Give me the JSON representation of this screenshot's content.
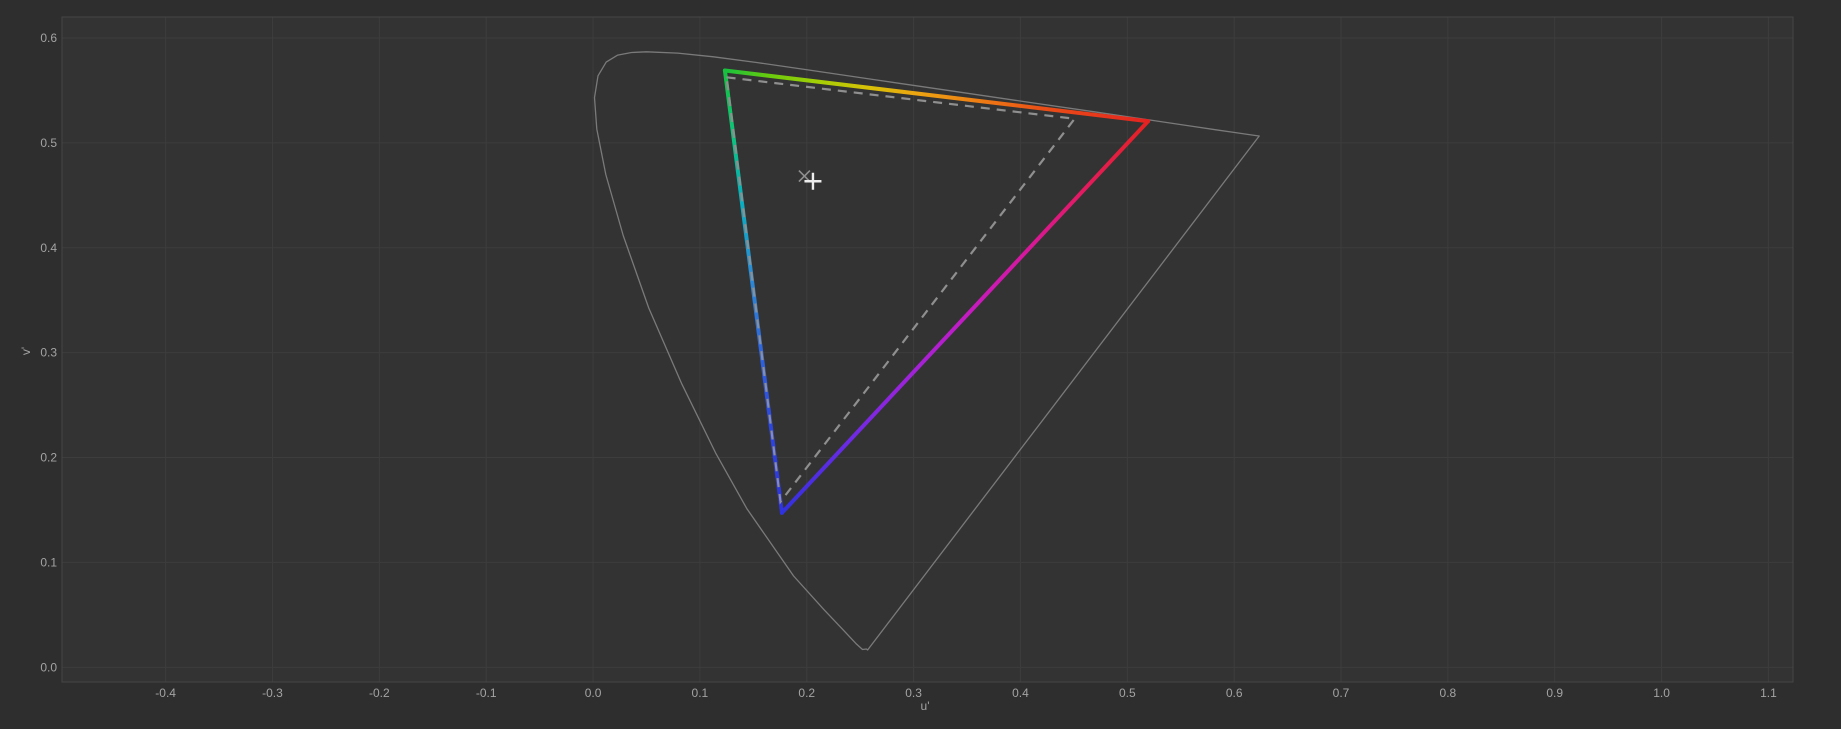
{
  "window": {
    "background": "#2e2e2e",
    "plot_background": "#333333",
    "grid_color": "#3d3d3d",
    "border_color": "#464646",
    "label_color": "#a3a3a3"
  },
  "chart_data": {
    "type": "line",
    "description": "CIE 1976 u'v' chromaticity diagram with spectral locus, wide display gamut triangle (hue-gradient edges), dashed reference gamut triangle and white point markers",
    "xlabel": "u'",
    "ylabel": "v'",
    "xlim": [
      -0.497,
      1.123
    ],
    "ylim": [
      -0.014,
      0.62
    ],
    "grid": true,
    "x_tick_labels": [
      "-0.4",
      "-0.3",
      "-0.2",
      "-0.1",
      "0.0",
      "0.1",
      "0.2",
      "0.3",
      "0.4",
      "0.5",
      "0.6",
      "0.7",
      "0.8",
      "0.9",
      "1.0",
      "1.1"
    ],
    "y_tick_labels": [
      "0.0",
      "0.1",
      "0.2",
      "0.3",
      "0.4",
      "0.5",
      "0.6"
    ],
    "series": [
      {
        "name": "spectral-locus",
        "style": "solid",
        "color": "#7a7a7a",
        "width": 1.3,
        "closed": true,
        "points": [
          [
            0.2569,
            0.0165
          ],
          [
            0.2558,
            0.0175
          ],
          [
            0.2522,
            0.017
          ],
          [
            0.2461,
            0.0226
          ],
          [
            0.2347,
            0.035
          ],
          [
            0.2161,
            0.0549
          ],
          [
            0.1877,
            0.0871
          ],
          [
            0.1441,
            0.151
          ],
          [
            0.1147,
            0.2044
          ],
          [
            0.0828,
            0.2708
          ],
          [
            0.0521,
            0.3427
          ],
          [
            0.0282,
            0.4117
          ],
          [
            0.0119,
            0.4698
          ],
          [
            0.0035,
            0.5131
          ],
          [
            0.0014,
            0.5432
          ],
          [
            0.0046,
            0.5639
          ],
          [
            0.0123,
            0.577
          ],
          [
            0.0231,
            0.5837
          ],
          [
            0.036,
            0.5862
          ],
          [
            0.0501,
            0.5868
          ],
          [
            0.0792,
            0.5856
          ],
          [
            0.1127,
            0.5821
          ],
          [
            0.1531,
            0.5766
          ],
          [
            0.2026,
            0.5694
          ],
          [
            0.2623,
            0.5604
          ],
          [
            0.3315,
            0.5501
          ],
          [
            0.4035,
            0.5393
          ],
          [
            0.4691,
            0.5296
          ],
          [
            0.5203,
            0.5219
          ],
          [
            0.5565,
            0.5165
          ],
          [
            0.583,
            0.5125
          ],
          [
            0.6005,
            0.5099
          ],
          [
            0.6109,
            0.5084
          ],
          [
            0.6199,
            0.507
          ],
          [
            0.6234,
            0.5065
          ]
        ]
      },
      {
        "name": "reference-gamut",
        "style": "dashed",
        "color": "#8f8f8f",
        "width": 2.2,
        "dash": "9 7",
        "points": [
          [
            0.125,
            0.5625
          ],
          [
            0.4507,
            0.5229
          ],
          [
            0.1754,
            0.1579
          ]
        ]
      },
      {
        "name": "display-gamut",
        "style": "gradient-triangle",
        "width": 4,
        "points": [
          [
            0.1234,
            0.569
          ],
          [
            0.5194,
            0.5206
          ],
          [
            0.1768,
            0.1473
          ]
        ],
        "edge_gradients": {
          "top_green_to_red": [
            [
              0,
              "#17c13e"
            ],
            [
              0.1,
              "#65cb0e"
            ],
            [
              0.22,
              "#a4cf06"
            ],
            [
              0.34,
              "#d8c107"
            ],
            [
              0.46,
              "#eda312"
            ],
            [
              0.6,
              "#ee7d14"
            ],
            [
              0.75,
              "#ea4f16"
            ],
            [
              1,
              "#e42320"
            ]
          ],
          "right_red_to_blue": [
            [
              0,
              "#e42320"
            ],
            [
              0.18,
              "#e31a61"
            ],
            [
              0.34,
              "#d617a0"
            ],
            [
              0.5,
              "#c31cc3"
            ],
            [
              0.66,
              "#9c23da"
            ],
            [
              0.82,
              "#6b2ae4"
            ],
            [
              1,
              "#3231de"
            ]
          ],
          "left_green_to_blue": [
            [
              0,
              "#17c13e"
            ],
            [
              0.15,
              "#0fc27e"
            ],
            [
              0.3,
              "#0aaec0"
            ],
            [
              0.45,
              "#2b8ed2"
            ],
            [
              0.62,
              "#2f68dd"
            ],
            [
              0.8,
              "#2c46e2"
            ],
            [
              1,
              "#2e33df"
            ]
          ]
        }
      },
      {
        "name": "reference-white",
        "marker": "x",
        "color": "#8f8f8f",
        "size": 5.5,
        "stroke_width": 1.6,
        "point": [
          0.1978,
          0.4683
        ]
      },
      {
        "name": "measured-white",
        "marker": "+",
        "color": "#ededed",
        "size": 8.5,
        "stroke_width": 2.4,
        "point": [
          0.2058,
          0.4634
        ]
      }
    ]
  }
}
